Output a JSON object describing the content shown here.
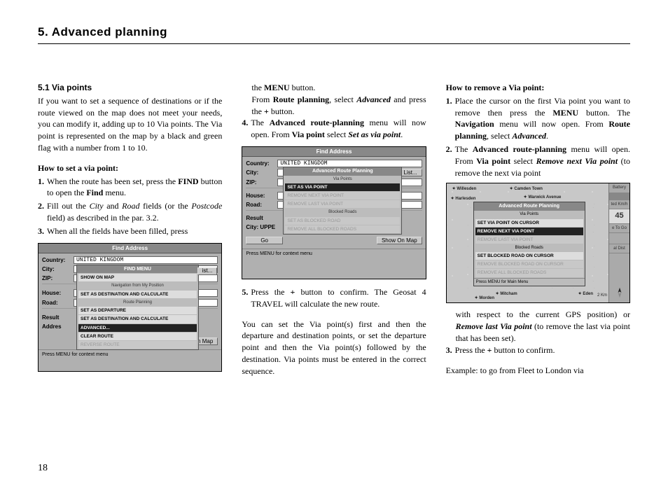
{
  "chapter_title": "5. Advanced planning",
  "page_number": "18",
  "col1": {
    "section_title": "5.1 Via points",
    "intro": "If you want to set a sequence of destinations or if the route viewed on the map does not meet your needs, you can modify it, adding up to 10 Via points. The Via point is represented on the map by a black and green flag with a number from 1 to 10.",
    "howto_set": "How to set a via point:",
    "step1_pre": "When the route has been set, press the ",
    "step1_b1": "FIND",
    "step1_mid": " button to open the ",
    "step1_b2": "Find",
    "step1_post": " menu.",
    "step2_pre": "Fill out the ",
    "step2_i1": "City",
    "step2_mid1": " and ",
    "step2_i2": "Road",
    "step2_mid2": " fields (or the ",
    "step2_i3": "Postcode",
    "step2_post": " field) as described in the par. 3.2.",
    "step3": "When all the fields have been filled, press"
  },
  "shot1": {
    "title": "Find Address",
    "country_label": "Country:",
    "country_val": "UNITED KINGDOM",
    "city_label": "City:",
    "zip_label": "ZIP:",
    "house_label": "House:",
    "road_label": "Road:",
    "result_label": "Result",
    "addres_label": "Addres",
    "list_btn": "ist...",
    "show_btn": "Show On Map",
    "footer": "Press MENU for context menu",
    "menu_title": "FIND MENU",
    "menu_items": [
      {
        "t": "SHOW ON MAP",
        "sel": false
      },
      {
        "t": "Navigation from My Position",
        "sec": true
      },
      {
        "t": "SET AS DESTINATION AND CALCULATE",
        "sel": false
      },
      {
        "t": "Route Planning",
        "sec": true
      },
      {
        "t": "SET AS DEPARTURE",
        "sel": false
      },
      {
        "t": "SET AS DESTINATION AND CALCULATE",
        "sel": false
      },
      {
        "t": "ADVANCED...",
        "sel": true
      },
      {
        "t": "CLEAR ROUTE",
        "sel": false
      },
      {
        "t": "REVERSE ROUTE",
        "dim": true
      }
    ]
  },
  "col2": {
    "line1_pre": "the ",
    "line1_b": "MENU",
    "line1_post": " button.",
    "line2_pre": "From ",
    "line2_b1": "Route planning",
    "line2_mid": ", select ",
    "line2_bi": "Advanced",
    "line2_post": " and press the ",
    "line2_b2": "+",
    "line2_end": " button.",
    "step4_pre": "The ",
    "step4_b1": "Advanced route-planning",
    "step4_mid": " menu will now open. From ",
    "step4_b2": "Via point",
    "step4_mid2": " select ",
    "step4_bi": "Set as via point",
    "step4_post": ".",
    "step5_pre": "Press the ",
    "step5_b": "+",
    "step5_post": " button to confirm. The Geosat 4 TRAVEL will calculate the new route.",
    "tail": "You can set the Via point(s) first and then the departure and destination points, or set the departure point and then the Via point(s) followed by the destination. Via points must be entered in the correct sequence."
  },
  "shot2": {
    "title": "Find Address",
    "country_label": "Country:",
    "country_val": "UNITED KINGDOM",
    "city_label": "City:",
    "zip_label": "ZIP:",
    "house_label": "House:",
    "road_label": "Road:",
    "result_label": "Result",
    "cityuppe": "City: UPPE",
    "list_btn": "List...",
    "go_btn": "Go",
    "show_btn": "Show On Map",
    "footer": "Press MENU for context menu",
    "menu_title": "Advanced Route Planning",
    "sec1": "Via Points",
    "items1": [
      {
        "t": "SET AS VIA POINT",
        "sel": true
      },
      {
        "t": "REMOVE NEXT VIA POINT",
        "dim": true
      },
      {
        "t": "REMOVE LAST VIA POINT",
        "dim": true
      }
    ],
    "sec2": "Blocked Roads",
    "items2": [
      {
        "t": "SET AS BLOCKED ROAD",
        "dim": true
      },
      {
        "t": "REMOVE ALL BLOCKED ROADS",
        "dim": true
      }
    ]
  },
  "col3": {
    "howto_remove": "How to remove a Via point:",
    "step1_pre": "Place the cursor on the first Via point you want to remove then press the ",
    "step1_b1": "MENU",
    "step1_mid1": " button. The ",
    "step1_b2": "Navigation",
    "step1_mid2": " menu will now open. From ",
    "step1_b3": "Route planning",
    "step1_mid3": ", select ",
    "step1_bi": "Advanced",
    "step1_post": ".",
    "step2_pre": "The ",
    "step2_b1": "Advanced route-planning",
    "step2_mid1": " menu will open. From ",
    "step2_b2": "Via point",
    "step2_mid2": " select ",
    "step2_bi1": "Remove next Via point",
    "step2_mid3": " (to remove the next via point",
    "tail1_pre": "with respect to the current GPS position) or ",
    "tail1_bi": "Remove last Via point",
    "tail1_post": " (to remove the last via point that has been set).",
    "step3_pre": "Press the ",
    "step3_b": "+",
    "step3_post": " button to confirm.",
    "example": "Example: to go from Fleet to London via"
  },
  "mapshot": {
    "menu_title": "Advanced Route Planning",
    "sec1": "Via Points",
    "i1": "SET VIA POINT ON CURSOR",
    "i2": "REMOVE NEXT VIA POINT",
    "i3": "REMOVE LAST VIA POINT",
    "sec2": "Blocked Roads",
    "i4": "SET BLOCKED ROAD ON CURSOR",
    "i5": "REMOVE BLOCKED ROAD ON CURSOR",
    "i6": "REMOVE ALL BLOCKED ROADS",
    "footer": "Press MENU for Main Menu",
    "labels": {
      "a": "Willesden",
      "b": "Harlesden",
      "c": "Camden Town",
      "d": "Warwick Avenue",
      "e": "Mitcham",
      "f": "Morden",
      "g": "Eden"
    },
    "right": {
      "battery": "Battery",
      "speed": "ted   Km/h",
      "val": "45",
      "togo": "e To Go",
      "dist": "al Dist"
    },
    "scale": "2 Km"
  }
}
